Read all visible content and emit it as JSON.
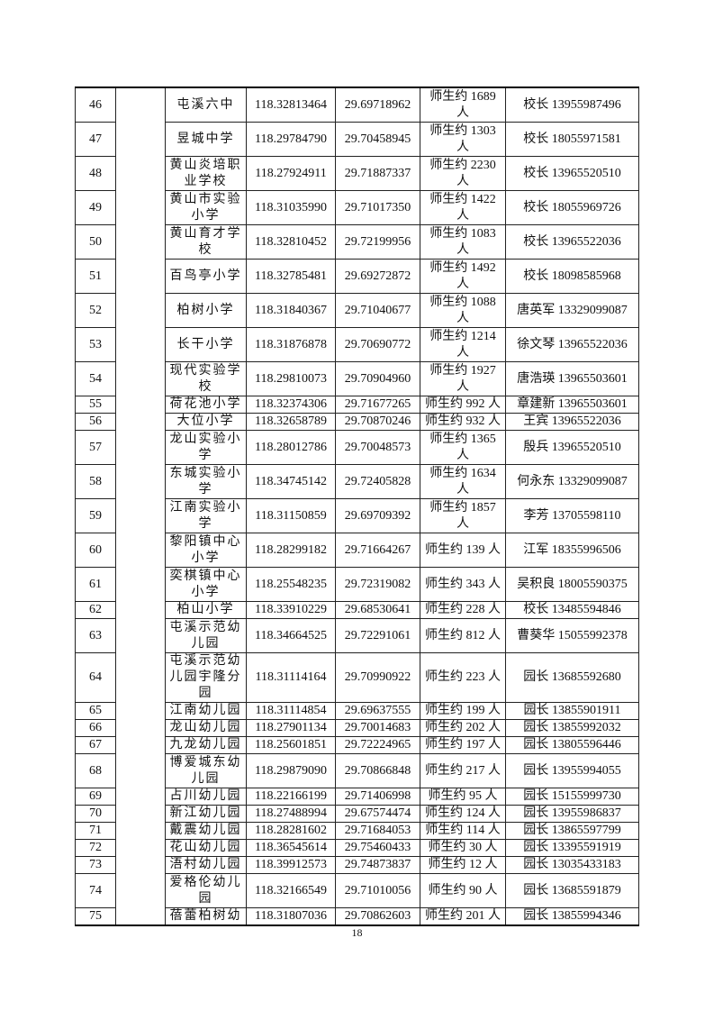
{
  "rows": [
    {
      "no": "46",
      "name": "屯溪六中",
      "lon": "118.32813464",
      "lat": "29.69718962",
      "count": "师生约 1689 人",
      "contact": "校长 13955987496"
    },
    {
      "no": "47",
      "name": "昱城中学",
      "lon": "118.29784790",
      "lat": "29.70458945",
      "count": "师生约 1303 人",
      "contact": "校长 18055971581"
    },
    {
      "no": "48",
      "name": "黄山炎培职业学校",
      "lon": "118.27924911",
      "lat": "29.71887337",
      "count": "师生约 2230 人",
      "contact": "校长 13965520510"
    },
    {
      "no": "49",
      "name": "黄山市实验小学",
      "lon": "118.31035990",
      "lat": "29.71017350",
      "count": "师生约 1422 人",
      "contact": "校长 18055969726"
    },
    {
      "no": "50",
      "name": "黄山育才学校",
      "lon": "118.32810452",
      "lat": "29.72199956",
      "count": "师生约 1083 人",
      "contact": "校长 13965522036"
    },
    {
      "no": "51",
      "name": "百鸟亭小学",
      "lon": "118.32785481",
      "lat": "29.69272872",
      "count": "师生约 1492 人",
      "contact": "校长 18098585968"
    },
    {
      "no": "52",
      "name": "柏树小学",
      "lon": "118.31840367",
      "lat": "29.71040677",
      "count": "师生约 1088 人",
      "contact": "唐英军 13329099087"
    },
    {
      "no": "53",
      "name": "长干小学",
      "lon": "118.31876878",
      "lat": "29.70690772",
      "count": "师生约 1214 人",
      "contact": "徐文琴 13965522036"
    },
    {
      "no": "54",
      "name": "现代实验学校",
      "lon": "118.29810073",
      "lat": "29.70904960",
      "count": "师生约 1927 人",
      "contact": "唐浩瑛 13965503601"
    },
    {
      "no": "55",
      "name": "荷花池小学",
      "lon": "118.32374306",
      "lat": "29.71677265",
      "count": "师生约 992 人",
      "contact": "章建新 13965503601"
    },
    {
      "no": "56",
      "name": "大位小学",
      "lon": "118.32658789",
      "lat": "29.70870246",
      "count": "师生约 932 人",
      "contact": "王宾 13965522036"
    },
    {
      "no": "57",
      "name": "龙山实验小学",
      "lon": "118.28012786",
      "lat": "29.70048573",
      "count": "师生约 1365 人",
      "contact": "殷兵 13965520510"
    },
    {
      "no": "58",
      "name": "东城实验小学",
      "lon": "118.34745142",
      "lat": "29.72405828",
      "count": "师生约 1634 人",
      "contact": "何永东 13329099087"
    },
    {
      "no": "59",
      "name": "江南实验小学",
      "lon": "118.31150859",
      "lat": "29.69709392",
      "count": "师生约 1857 人",
      "contact": "李芳 13705598110"
    },
    {
      "no": "60",
      "name": "黎阳镇中心小学",
      "lon": "118.28299182",
      "lat": "29.71664267",
      "count": "师生约 139 人",
      "contact": "江军 18355996506"
    },
    {
      "no": "61",
      "name": "奕棋镇中心小学",
      "lon": "118.25548235",
      "lat": "29.72319082",
      "count": "师生约 343 人",
      "contact": "吴积良 18005590375"
    },
    {
      "no": "62",
      "name": "柏山小学",
      "lon": "118.33910229",
      "lat": "29.68530641",
      "count": "师生约 228 人",
      "contact": "校长 13485594846"
    },
    {
      "no": "63",
      "name": "屯溪示范幼儿园",
      "lon": "118.34664525",
      "lat": "29.72291061",
      "count": "师生约 812 人",
      "contact": "曹葵华 15055992378"
    },
    {
      "no": "64",
      "name": "屯溪示范幼儿园宇隆分园",
      "lon": "118.31114164",
      "lat": "29.70990922",
      "count": "师生约 223 人",
      "contact": "园长 13685592680"
    },
    {
      "no": "65",
      "name": "江南幼儿园",
      "lon": "118.31114854",
      "lat": "29.69637555",
      "count": "师生约 199 人",
      "contact": "园长 13855901911"
    },
    {
      "no": "66",
      "name": "龙山幼儿园",
      "lon": "118.27901134",
      "lat": "29.70014683",
      "count": "师生约 202 人",
      "contact": "园长 13855992032"
    },
    {
      "no": "67",
      "name": "九龙幼儿园",
      "lon": "118.25601851",
      "lat": "29.72224965",
      "count": "师生约 197 人",
      "contact": "园长 13805596446"
    },
    {
      "no": "68",
      "name": "博爱城东幼儿园",
      "lon": "118.29879090",
      "lat": "29.70866848",
      "count": "师生约 217 人",
      "contact": "园长 13955994055"
    },
    {
      "no": "69",
      "name": "占川幼儿园",
      "lon": "118.22166199",
      "lat": "29.71406998",
      "count": "师生约 95 人",
      "contact": "园长 15155999730"
    },
    {
      "no": "70",
      "name": "新江幼儿园",
      "lon": "118.27488994",
      "lat": "29.67574474",
      "count": "师生约 124 人",
      "contact": "园长 13955986837"
    },
    {
      "no": "71",
      "name": "戴震幼儿园",
      "lon": "118.28281602",
      "lat": "29.71684053",
      "count": "师生约 114 人",
      "contact": "园长 13865597799"
    },
    {
      "no": "72",
      "name": "花山幼儿园",
      "lon": "118.36545614",
      "lat": "29.75460433",
      "count": "师生约 30 人",
      "contact": "园长 13395591919"
    },
    {
      "no": "73",
      "name": "浯村幼儿园",
      "lon": "118.39912573",
      "lat": "29.74873837",
      "count": "师生约 12 人",
      "contact": "园长 13035433183"
    },
    {
      "no": "74",
      "name": "爱格伦幼儿园",
      "lon": "118.32166549",
      "lat": "29.71010056",
      "count": "师生约 90 人",
      "contact": "园长 13685591879"
    },
    {
      "no": "75",
      "name": "蓓蕾柏树幼",
      "lon": "118.31807036",
      "lat": "29.70862603",
      "count": "师生约 201 人",
      "contact": "园长 13855994346"
    }
  ],
  "page_number": "18"
}
